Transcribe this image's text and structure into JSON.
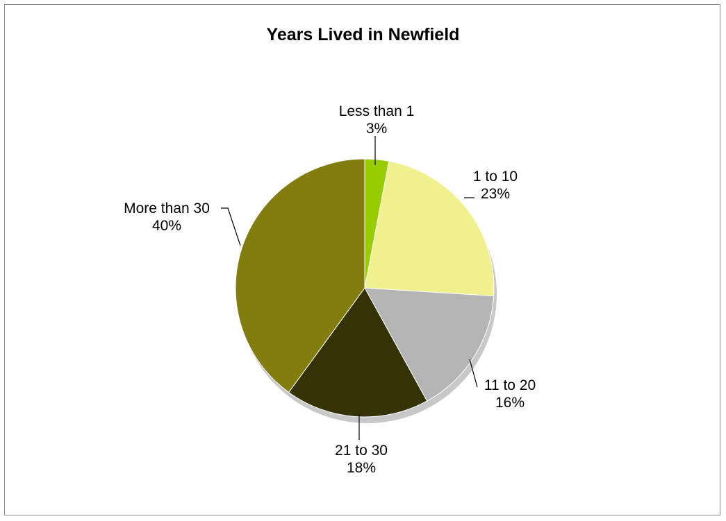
{
  "chart_data": {
    "type": "pie",
    "title": "Years Lived in Newfield",
    "slices": [
      {
        "label": "Less than 1",
        "value": 3,
        "display": "3%",
        "color": "#99cc00"
      },
      {
        "label": "1 to 10",
        "value": 23,
        "display": "23%",
        "color": "#f0f08c"
      },
      {
        "label": "11 to 20",
        "value": 16,
        "display": "16%",
        "color": "#b4b4b4"
      },
      {
        "label": "21 to 30",
        "value": 18,
        "display": "18%",
        "color": "#363208"
      },
      {
        "label": "More than 30",
        "value": 40,
        "display": "40%",
        "color": "#837c0f"
      }
    ]
  }
}
